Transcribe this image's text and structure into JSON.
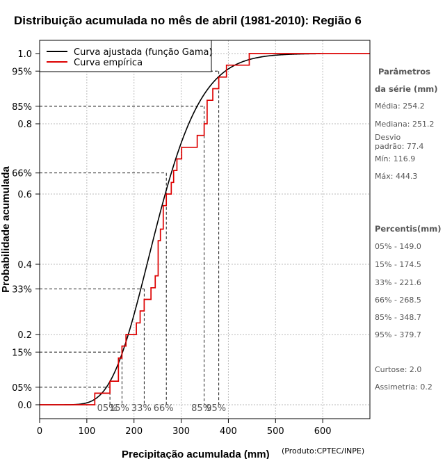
{
  "chart_data": {
    "type": "line",
    "title": "Distribuição acumulada no mês de abril (1981-2010): Região 6",
    "xlabel": "Precipitação acumulada (mm)",
    "ylabel": "Probabilidade acumulada",
    "credit": "(Produto:CPTEC/INPE)",
    "xlim": [
      0,
      700
    ],
    "ylim": [
      0,
      1.0
    ],
    "x_ticks": [
      0,
      100,
      200,
      300,
      400,
      500,
      600
    ],
    "y_ticks": [
      {
        "value": 0.0,
        "label": "0.0"
      },
      {
        "value": 0.2,
        "label": "0.2"
      },
      {
        "value": 0.4,
        "label": "0.4"
      },
      {
        "value": 0.6,
        "label": "0.6"
      },
      {
        "value": 0.8,
        "label": "0.8"
      },
      {
        "value": 1.0,
        "label": "1.0"
      }
    ],
    "percentile_y_ticks": [
      {
        "value": 0.05,
        "label": "05%"
      },
      {
        "value": 0.15,
        "label": "15%"
      },
      {
        "value": 0.33,
        "label": "33%"
      },
      {
        "value": 0.66,
        "label": "66%"
      },
      {
        "value": 0.85,
        "label": "85%"
      },
      {
        "value": 0.95,
        "label": "95%"
      }
    ],
    "legend": {
      "placement": "top-left",
      "entries": [
        {
          "name": "Curva ajustada (função Gama)",
          "color": "#000000"
        },
        {
          "name": "Curva empírica",
          "color": "#dd0000"
        }
      ]
    },
    "series": [
      {
        "name": "Curva ajustada (função Gama)",
        "color": "#000000",
        "gamma_mean": 254.2,
        "gamma_sd": 77.4,
        "x_range": [
          0,
          595
        ]
      },
      {
        "name": "Curva empírica",
        "color": "#dd0000",
        "step_x": [
          116.9,
          149.0,
          167.0,
          174.5,
          183.0,
          205.0,
          213.0,
          221.6,
          236.0,
          245.0,
          251.2,
          256.0,
          262.0,
          268.5,
          279.0,
          284.0,
          291.0,
          301.0,
          334.0,
          348.7,
          355.0,
          367.0,
          379.7,
          396.0,
          444.3
        ],
        "step_y": [
          0.033,
          0.067,
          0.133,
          0.167,
          0.2,
          0.233,
          0.267,
          0.3,
          0.333,
          0.367,
          0.467,
          0.5,
          0.567,
          0.6,
          0.633,
          0.667,
          0.7,
          0.733,
          0.767,
          0.8,
          0.867,
          0.9,
          0.933,
          0.967,
          1.0
        ],
        "x_end": 700
      }
    ],
    "percentiles": [
      {
        "label": "05%",
        "prob": 0.05,
        "x": 149.0
      },
      {
        "label": "15%",
        "prob": 0.15,
        "x": 174.5
      },
      {
        "label": "33%",
        "prob": 0.33,
        "x": 221.6
      },
      {
        "label": "66%",
        "prob": 0.66,
        "x": 268.5
      },
      {
        "label": "85%",
        "prob": 0.85,
        "x": 348.7
      },
      {
        "label": "95%",
        "prob": 0.95,
        "x": 379.7
      }
    ],
    "side_panel": {
      "params_title_1": "Parâmetros",
      "params_title_2": "da série (mm)",
      "params": [
        "Média: 254.2",
        "Mediana: 251.2",
        "Desvio",
        "padrão: 77.4",
        "Mín: 116.9",
        "Máx: 444.3"
      ],
      "percentis_title": "Percentis(mm)",
      "percentis": [
        "05% - 149.0",
        "15% - 174.5",
        "33% - 221.6",
        "66% - 268.5",
        "85% - 348.7",
        "95% - 379.7"
      ],
      "extra": [
        "Curtose: 2.0",
        "Assimetria: 0.2"
      ]
    }
  }
}
